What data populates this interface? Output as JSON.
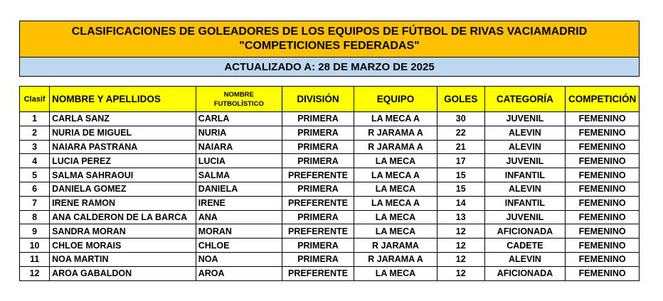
{
  "title": {
    "line1": "CLASIFICACIONES DE GOLEADORES DE LOS EQUIPOS DE FÚTBOL DE RIVAS VACIAMADRID",
    "line2": "\"COMPETICIONES FEDERADAS\"",
    "updated": "ACTUALIZADO A: 28 DE MARZO DE 2025"
  },
  "colors": {
    "title_bg": "#ffc000",
    "subtitle_bg": "#bdd7ee",
    "header_bg": "#ffff00"
  },
  "headers": [
    "Clasif",
    "NOMBRE Y APELLIDOS",
    "NOMBRE FUTBOLÍSTICO",
    "DIVISIÓN",
    "EQUIPO",
    "GOLES",
    "CATEGORÍA",
    "COMPETICIÓN"
  ],
  "rows": [
    [
      "1",
      "CARLA SANZ",
      "CARLA",
      "PRIMERA",
      "LA MECA A",
      "30",
      "JUVENIL",
      "FEMENINO"
    ],
    [
      "2",
      "NURIA DE MIGUEL",
      "NURIA",
      "PRIMERA",
      "R JARAMA A",
      "22",
      "ALEVIN",
      "FEMENINO"
    ],
    [
      "3",
      "NAIARA PASTRANA",
      "NAIARA",
      "PRIMERA",
      "R JARAMA A",
      "21",
      "ALEVIN",
      "FEMENINO"
    ],
    [
      "4",
      "LUCIA PEREZ",
      "LUCIA",
      "PRIMERA",
      "LA MECA",
      "17",
      "JUVENIL",
      "FEMENINO"
    ],
    [
      "5",
      "SALMA SAHRAOUI",
      "SALMA",
      "PREFERENTE",
      "LA MECA A",
      "15",
      "INFANTIL",
      "FEMENINO"
    ],
    [
      "6",
      "DANIELA GOMEZ",
      "DANIELA",
      "PRIMERA",
      "LA MECA",
      "15",
      "ALEVIN",
      "FEMENINO"
    ],
    [
      "7",
      "IRENE RAMON",
      "IRENE",
      "PREFERENTE",
      "LA MECA A",
      "14",
      "INFANTIL",
      "FEMENINO"
    ],
    [
      "8",
      "ANA CALDERON DE LA BARCA",
      "ANA",
      "PRIMERA",
      "LA MECA",
      "13",
      "JUVENIL",
      "FEMENINO"
    ],
    [
      "9",
      "SANDRA MORAN",
      "MORAN",
      "PREFERENTE",
      "LA MECA",
      "12",
      "AFICIONADA",
      "FEMENINO"
    ],
    [
      "10",
      "CHLOE MORAIS",
      "CHLOE",
      "PRIMERA",
      "R JARAMA",
      "12",
      "CADETE",
      "FEMENINO"
    ],
    [
      "11",
      "NOA MARTIN",
      "NOA",
      "PRIMERA",
      "R JARAMA A",
      "12",
      "ALEVIN",
      "FEMENINO"
    ],
    [
      "12",
      "AROA GABALDON",
      "AROA",
      "PREFERENTE",
      "LA MECA",
      "12",
      "AFICIONADA",
      "FEMENINO"
    ]
  ]
}
